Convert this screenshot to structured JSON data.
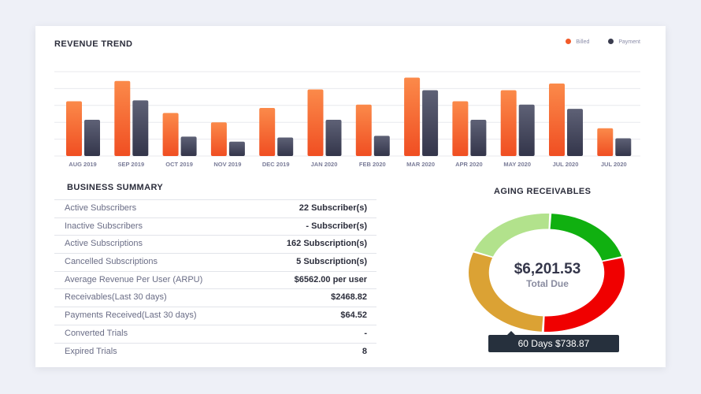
{
  "revenue": {
    "title": "REVENUE TREND",
    "legend": [
      {
        "label": "Billed",
        "color": "#f25a29"
      },
      {
        "label": "Payment",
        "color": "#3a3c4e"
      }
    ]
  },
  "chart_data": {
    "type": "bar",
    "title": "REVENUE TREND",
    "categories": [
      "AUG 2019",
      "SEP 2019",
      "OCT 2019",
      "NOV 2019",
      "DEC 2019",
      "JAN 2020",
      "FEB 2020",
      "MAR 2020",
      "APR 2020",
      "MAY 2020",
      "JUL 2020",
      "JUL 2020"
    ],
    "series": [
      {
        "name": "Billed",
        "values": [
          65,
          89,
          51,
          40,
          57,
          79,
          61,
          93,
          65,
          78,
          86,
          33
        ]
      },
      {
        "name": "Payment",
        "values": [
          43,
          66,
          23,
          17,
          22,
          43,
          24,
          78,
          43,
          61,
          56,
          21
        ]
      }
    ],
    "ylim": [
      0,
      100
    ],
    "grid": true,
    "legend": "top-right"
  },
  "summary": {
    "title": "BUSINESS SUMMARY",
    "rows": [
      {
        "k": "Active Subscribers",
        "v": "22 Subscriber(s)"
      },
      {
        "k": "Inactive Subscribers",
        "v": "- Subscriber(s)"
      },
      {
        "k": "Active Subscriptions",
        "v": "162 Subscription(s)"
      },
      {
        "k": "Cancelled Subscriptions",
        "v": "5 Subscription(s)"
      },
      {
        "k": "Average Revenue Per User (ARPU)",
        "v": "$6562.00 per user"
      },
      {
        "k": "Receivables(Last 30 days)",
        "v": "$2468.82"
      },
      {
        "k": "Payments Received(Last 30 days)",
        "v": "$64.52"
      },
      {
        "k": "Converted Trials",
        "v": "-"
      },
      {
        "k": "Expired Trials",
        "v": "8"
      }
    ]
  },
  "aging": {
    "title": "AGING RECEIVABLES",
    "total": "$6,201.53",
    "total_label": "Total Due",
    "tooltip": "60 Days $738.87",
    "segments": [
      {
        "fraction": 0.2,
        "color": "#10b010"
      },
      {
        "fraction": 0.3,
        "color": "#f00000"
      },
      {
        "fraction": 0.3,
        "color": "#dba234"
      },
      {
        "fraction": 0.2,
        "color": "#b2e28c"
      }
    ]
  }
}
